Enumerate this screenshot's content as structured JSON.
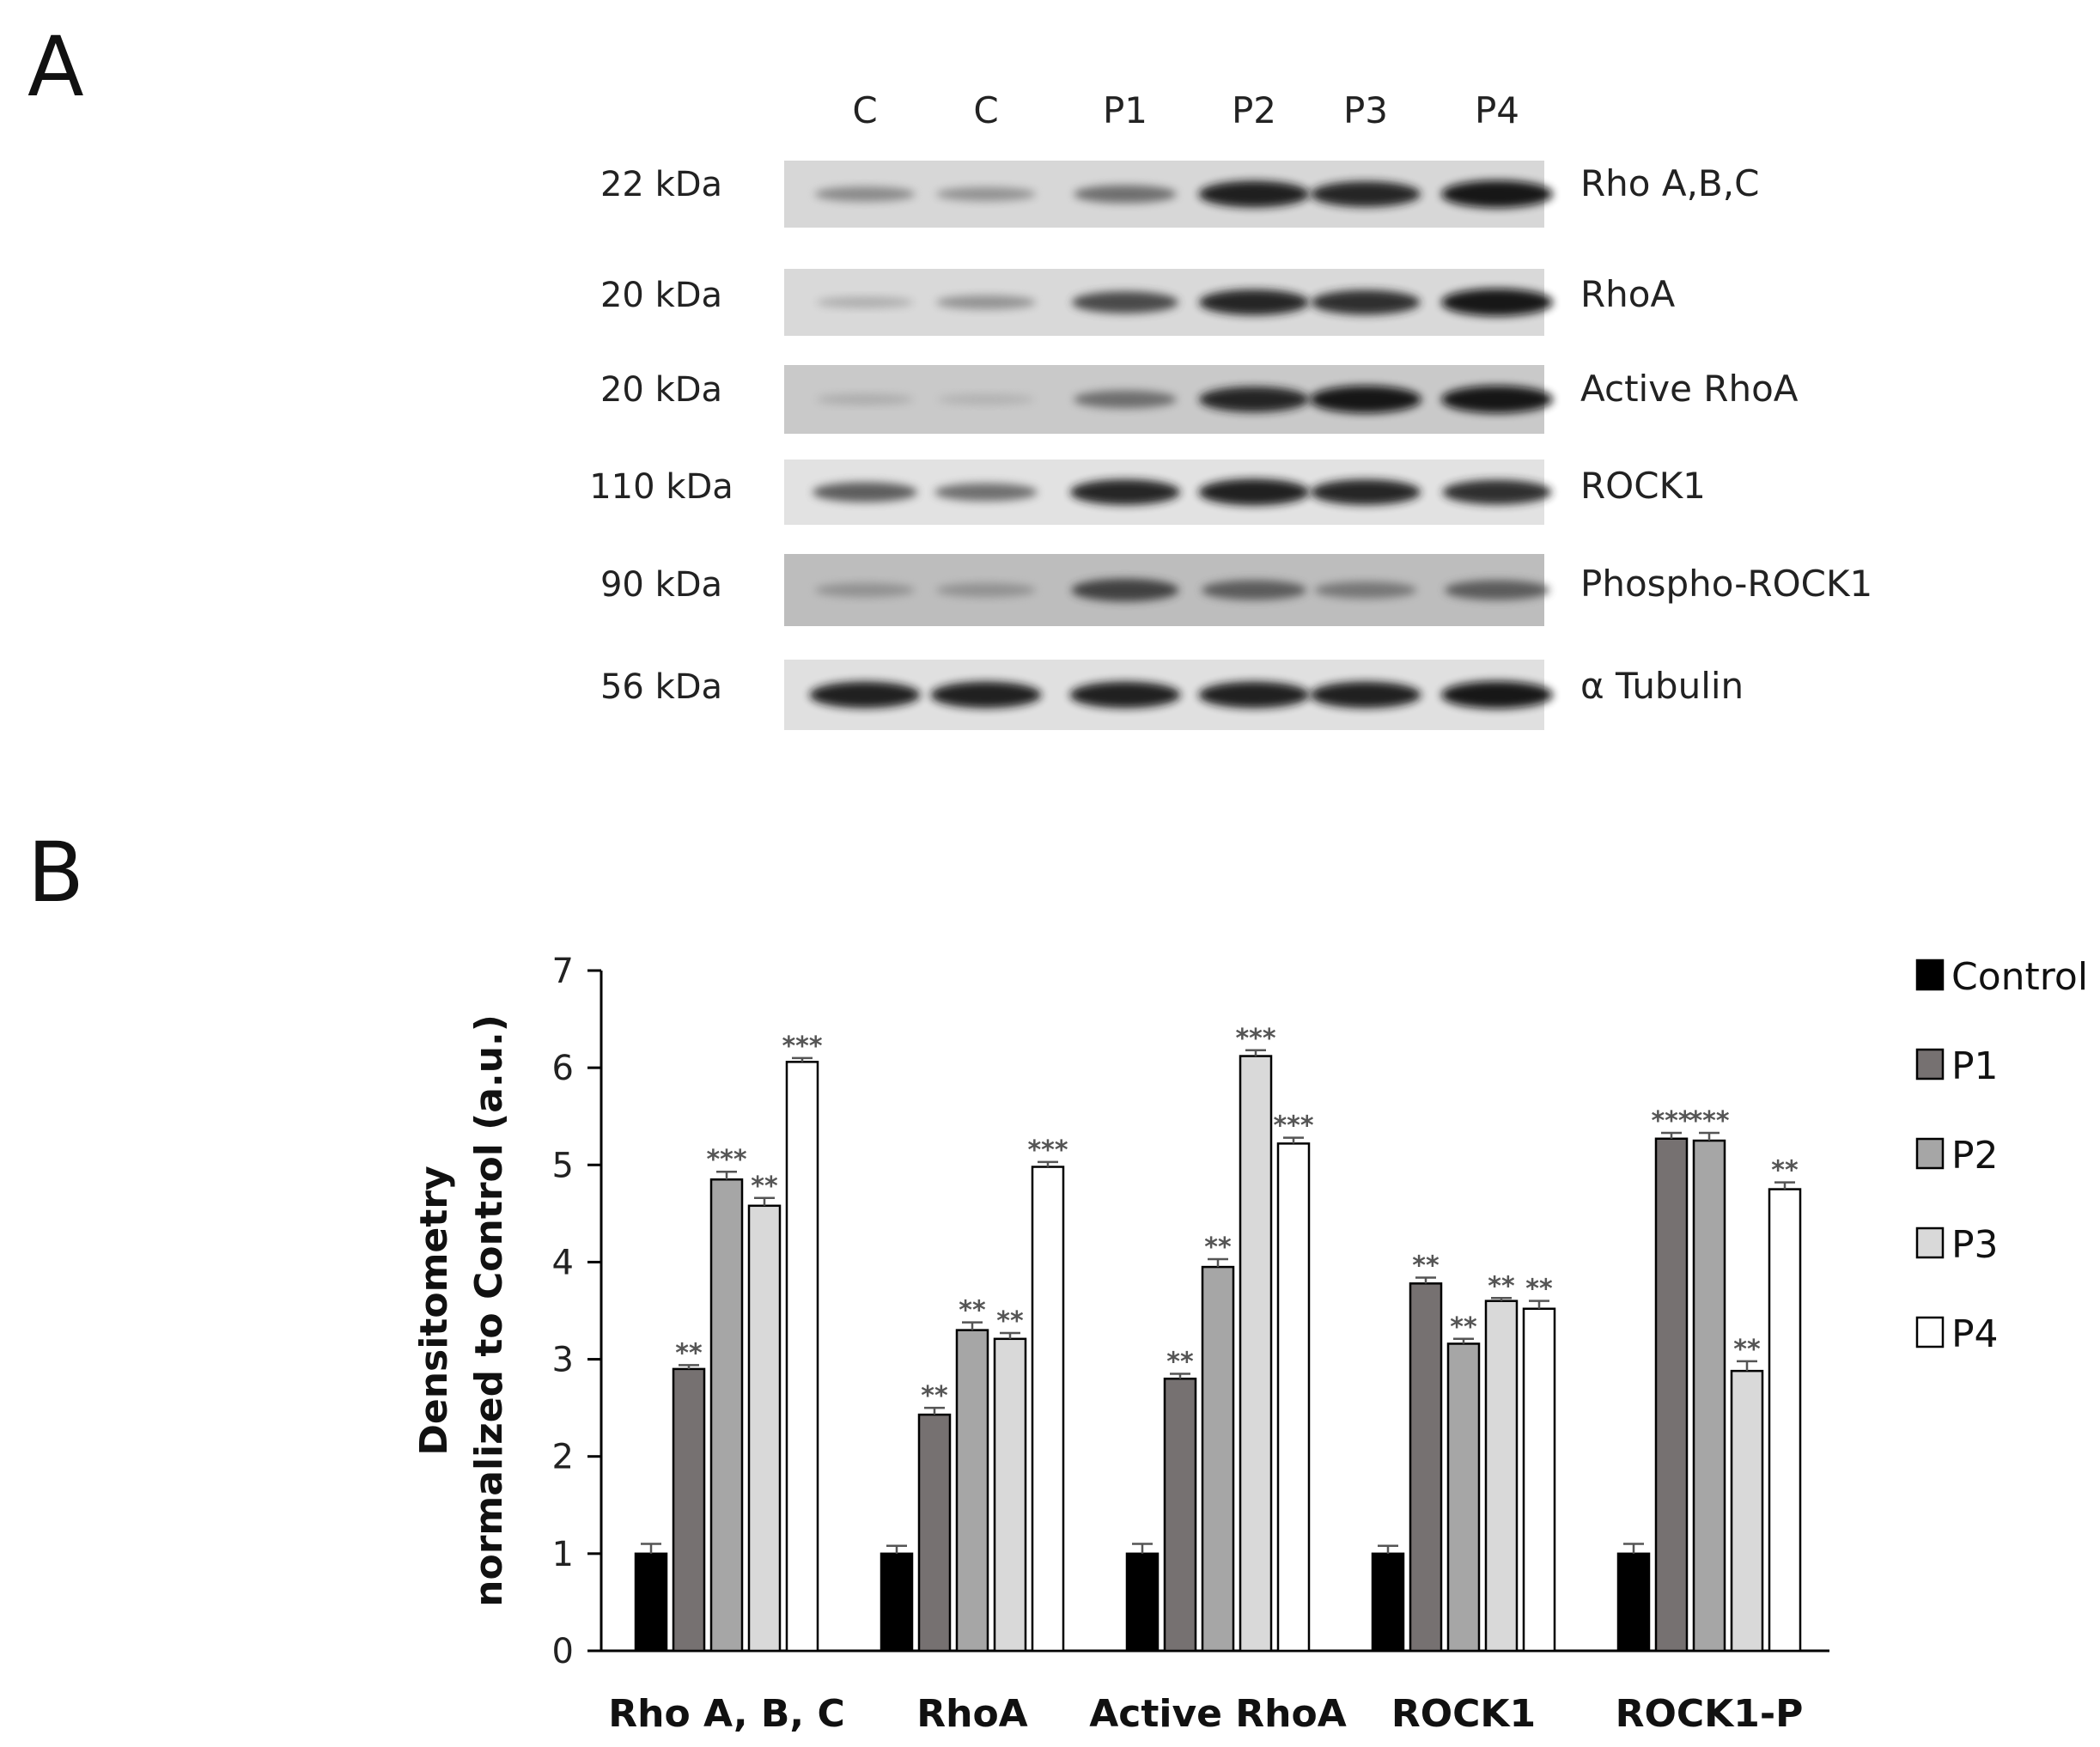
{
  "panels": {
    "a": "A",
    "b": "B"
  },
  "blot": {
    "lanes": [
      "C",
      "C",
      "P1",
      "P2",
      "P3",
      "P4"
    ],
    "rows": [
      {
        "kda": "22 kDa",
        "protein": "Rho A,B,C",
        "intensity": [
          0.35,
          0.3,
          0.5,
          0.95,
          0.9,
          1.0
        ],
        "bg": "#d7d7d7"
      },
      {
        "kda": "20 kDa",
        "protein": "RhoA",
        "intensity": [
          0.15,
          0.3,
          0.7,
          0.9,
          0.85,
          1.0
        ],
        "bg": "#d9d9d9"
      },
      {
        "kda": "20 kDa",
        "protein": "Active RhoA",
        "intensity": [
          0.15,
          0.12,
          0.5,
          0.9,
          1.0,
          1.0
        ],
        "bg": "#c9c9c9"
      },
      {
        "kda": "110 kDa",
        "protein": "ROCK1",
        "intensity": [
          0.6,
          0.5,
          0.9,
          0.95,
          0.9,
          0.85
        ],
        "bg": "#e2e2e2"
      },
      {
        "kda": "90 kDa",
        "protein": "Phospho-ROCK1",
        "intensity": [
          0.3,
          0.3,
          0.75,
          0.6,
          0.45,
          0.6
        ],
        "bg": "#bdbdbd"
      },
      {
        "kda": "56 kDa",
        "protein": "α Tubulin",
        "intensity": [
          0.95,
          0.95,
          0.95,
          0.95,
          0.95,
          1.0
        ],
        "bg": "#e0e0e0"
      }
    ]
  },
  "chart_data": {
    "type": "bar",
    "title": "",
    "xlabel": "",
    "ylabel": [
      "Densitometry",
      "normalized to Control (a.u.)"
    ],
    "ylim": [
      0,
      7
    ],
    "yticks": [
      "0",
      "1",
      "2",
      "3",
      "4",
      "5",
      "6",
      "7"
    ],
    "categories": [
      "Rho A, B, C",
      "RhoA",
      "Active RhoA",
      "ROCK1",
      "ROCK1-P"
    ],
    "legend_position": "right",
    "series": [
      {
        "name": "Control",
        "color": "#000000",
        "values": [
          1.0,
          1.0,
          1.0,
          1.0,
          1.0
        ],
        "errors": [
          0.1,
          0.08,
          0.1,
          0.08,
          0.1
        ],
        "sig": [
          "",
          "",
          "",
          "",
          ""
        ]
      },
      {
        "name": "P1",
        "color": "#767171",
        "values": [
          2.9,
          2.43,
          2.8,
          3.78,
          5.27
        ],
        "errors": [
          0.04,
          0.07,
          0.05,
          0.06,
          0.06
        ],
        "sig": [
          "**",
          "**",
          "**",
          "**",
          "***"
        ]
      },
      {
        "name": "P2",
        "color": "#a6a6a6",
        "values": [
          4.85,
          3.3,
          3.95,
          3.16,
          5.25
        ],
        "errors": [
          0.08,
          0.08,
          0.08,
          0.05,
          0.08
        ],
        "sig": [
          "***",
          "**",
          "**",
          "**",
          "***"
        ]
      },
      {
        "name": "P3",
        "color": "#d9d9d9",
        "values": [
          4.58,
          3.21,
          6.12,
          3.6,
          2.88
        ],
        "errors": [
          0.08,
          0.06,
          0.06,
          0.03,
          0.1
        ],
        "sig": [
          "**",
          "**",
          "***",
          "**",
          "**"
        ]
      },
      {
        "name": "P4",
        "color": "#ffffff",
        "values": [
          6.06,
          4.98,
          5.22,
          3.52,
          4.75
        ],
        "errors": [
          0.04,
          0.05,
          0.06,
          0.08,
          0.07
        ],
        "sig": [
          "***",
          "***",
          "***",
          "**",
          "**"
        ]
      }
    ]
  }
}
